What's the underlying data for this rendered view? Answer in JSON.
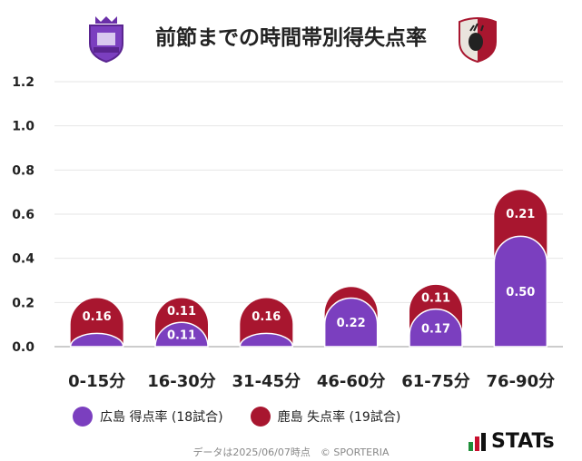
{
  "title": "前節までの時間帯別得失点率",
  "colors": {
    "hiroshima": "#7b3fbf",
    "kashima": "#a8162f"
  },
  "legend": {
    "hiroshima": "広島 得点率 (18試合)",
    "kashima": "鹿島 失点率 (19試合)"
  },
  "source": "データは2025/06/07時点　© SPORTERIA",
  "brand": "STATs",
  "logos": {
    "left_icon": "sanfrecce-crest-icon",
    "right_icon": "antlers-crest-icon"
  },
  "chart_data": {
    "type": "bar",
    "stacked": true,
    "categories": [
      "0-15分",
      "16-30分",
      "31-45分",
      "46-60分",
      "61-75分",
      "76-90分"
    ],
    "series": [
      {
        "name": "広島 得点率 (18試合)",
        "values": [
          0.06,
          0.11,
          0.06,
          0.22,
          0.17,
          0.5
        ],
        "labels": [
          "",
          "0.11",
          "",
          "0.22",
          "0.17",
          "0.50"
        ]
      },
      {
        "name": "鹿島 失点率 (19試合)",
        "values": [
          0.16,
          0.11,
          0.16,
          0.05,
          0.11,
          0.21
        ],
        "labels": [
          "0.16",
          "0.11",
          "0.16",
          "",
          "0.11",
          "0.21"
        ]
      }
    ],
    "yticks": [
      "0.0",
      "0.2",
      "0.4",
      "0.6",
      "0.8",
      "1.0",
      "1.2"
    ],
    "ylim": [
      0,
      1.2
    ],
    "grid": true,
    "legend_position": "bottom"
  }
}
